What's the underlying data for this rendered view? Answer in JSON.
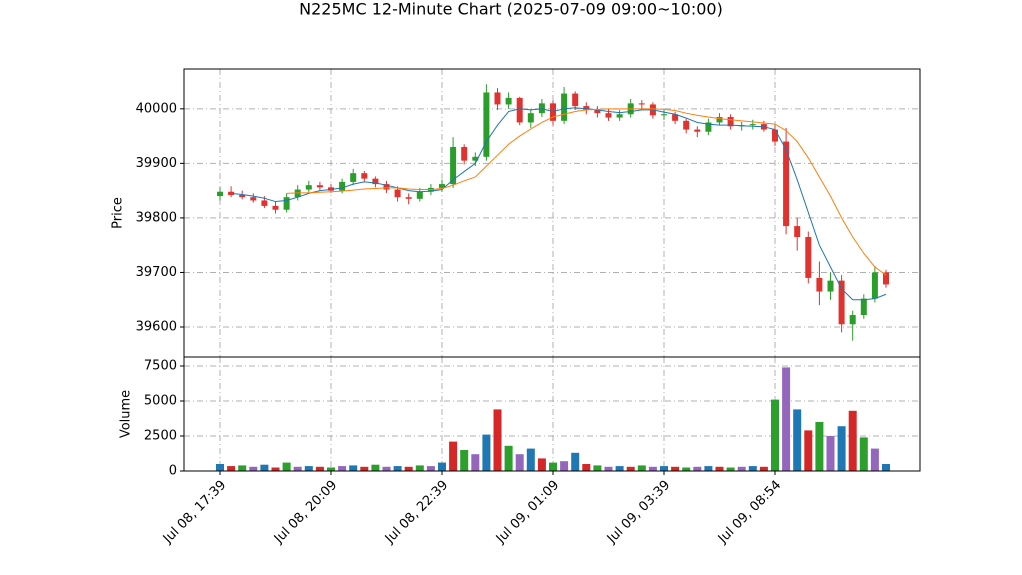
{
  "chart_data": {
    "type": "candlestick",
    "title": "N225MC 12-Minute Chart (2025-07-09 09:00~10:00)",
    "y_label": "Price",
    "categories": [
      "Jul 08, 17:39",
      null,
      null,
      null,
      null,
      null,
      null,
      null,
      null,
      null,
      "Jul 08, 20:09",
      null,
      null,
      null,
      null,
      null,
      null,
      null,
      null,
      null,
      "Jul 08, 22:39",
      null,
      null,
      null,
      null,
      null,
      null,
      null,
      null,
      null,
      "Jul 09, 01:09",
      null,
      null,
      null,
      null,
      null,
      null,
      null,
      null,
      null,
      "Jul 09, 03:39",
      null,
      null,
      null,
      null,
      null,
      null,
      null,
      null,
      null,
      "Jul 09, 08:54",
      null,
      null,
      null,
      null,
      null,
      null,
      null,
      null,
      null,
      null
    ],
    "open": [
      39840,
      39848,
      39842,
      39838,
      39832,
      39822,
      39815,
      39838,
      39852,
      39860,
      39856,
      39850,
      39866,
      39882,
      39872,
      39862,
      39852,
      39838,
      39835,
      39848,
      39855,
      39862,
      39930,
      39905,
      39912,
      40030,
      40008,
      40020,
      39975,
      39992,
      40010,
      39978,
      40028,
      40005,
      39998,
      39992,
      39984,
      39990,
      40010,
      40008,
      39988,
      39990,
      39978,
      39962,
      39958,
      39975,
      39985,
      39968,
      39970,
      39972,
      39962,
      39940,
      39785,
      39765,
      39690,
      39665,
      39685,
      39605,
      39622,
      39652,
      39700
    ],
    "high": [
      39856,
      39858,
      39850,
      39845,
      39840,
      39830,
      39845,
      39860,
      39868,
      39866,
      39862,
      39872,
      39890,
      39886,
      39876,
      39868,
      39858,
      39845,
      39855,
      39862,
      39870,
      39948,
      39935,
      39920,
      40045,
      40038,
      40030,
      40022,
      40000,
      40018,
      40015,
      40040,
      40032,
      40012,
      40005,
      40000,
      39998,
      40018,
      40016,
      40012,
      39998,
      39994,
      39982,
      39968,
      39982,
      39992,
      39990,
      39976,
      39980,
      39978,
      39970,
      39965,
      39800,
      39775,
      39720,
      39700,
      39695,
      39630,
      39660,
      39712,
      39705
    ],
    "low": [
      39832,
      39838,
      39834,
      39828,
      39818,
      39808,
      39810,
      39832,
      39846,
      39850,
      39846,
      39845,
      39860,
      39866,
      39856,
      39846,
      39830,
      39825,
      39830,
      39842,
      39848,
      39855,
      39898,
      39895,
      39905,
      39998,
      40000,
      39970,
      39965,
      39985,
      39970,
      39972,
      39998,
      39990,
      39984,
      39978,
      39978,
      39984,
      40000,
      39982,
      39980,
      39972,
      39955,
      39948,
      39952,
      39970,
      39962,
      39960,
      39962,
      39958,
      39932,
      39770,
      39740,
      39680,
      39640,
      39650,
      39590,
      39575,
      39615,
      39645,
      39672
    ],
    "close": [
      39848,
      39842,
      39838,
      39832,
      39822,
      39815,
      39838,
      39852,
      39860,
      39856,
      39850,
      39866,
      39882,
      39872,
      39862,
      39852,
      39838,
      39835,
      39848,
      39855,
      39862,
      39930,
      39905,
      39912,
      40030,
      40008,
      40020,
      39975,
      39992,
      40010,
      39978,
      40028,
      40005,
      39998,
      39992,
      39984,
      39990,
      40010,
      40008,
      39988,
      39990,
      39978,
      39962,
      39958,
      39975,
      39985,
      39968,
      39970,
      39972,
      39962,
      39940,
      39785,
      39765,
      39690,
      39665,
      39685,
      39605,
      39622,
      39652,
      39700,
      39678
    ],
    "up_color": "#2a9d2a",
    "down_color": "#e0322e",
    "lines": [
      {
        "color": "#1f77b4",
        "values": [
          null,
          39845,
          39843,
          39840,
          39836,
          39830,
          39832,
          39838,
          39845,
          39850,
          39852,
          39855,
          39862,
          39866,
          39864,
          39860,
          39855,
          39850,
          39848,
          39849,
          39852,
          39870,
          39885,
          39900,
          39940,
          39970,
          39995,
          40000,
          39998,
          40000,
          39995,
          40000,
          40002,
          40000,
          39998,
          39995,
          39993,
          39995,
          39998,
          39998,
          39994,
          39990,
          39983,
          39975,
          39972,
          39970,
          39970,
          39969,
          39968,
          39967,
          39962,
          39925,
          39870,
          39810,
          39750,
          39710,
          39670,
          39650,
          39650,
          39652,
          39660
        ]
      },
      {
        "color": "#ff7f0e",
        "values": [
          null,
          null,
          null,
          null,
          null,
          null,
          39845,
          39846,
          39846,
          39847,
          39848,
          39849,
          39851,
          39853,
          39854,
          39855,
          39855,
          39853,
          39852,
          39852,
          39854,
          39860,
          39868,
          39875,
          39895,
          39915,
          39935,
          39950,
          39963,
          39975,
          39985,
          39990,
          39995,
          39998,
          39999,
          40000,
          40000,
          40000,
          40000,
          40000,
          39999,
          39997,
          39992,
          39988,
          39985,
          39982,
          39980,
          39978,
          39976,
          39974,
          39972,
          39960,
          39940,
          39910,
          39875,
          39840,
          39800,
          39765,
          39735,
          39710,
          39695
        ]
      }
    ],
    "ylim": [
      39545,
      40073
    ],
    "yticks": [
      39600,
      39700,
      39800,
      39900,
      40000
    ],
    "grid": true,
    "volume": {
      "y_label": "Volume",
      "values": [
        500,
        350,
        400,
        300,
        450,
        250,
        600,
        300,
        350,
        300,
        250,
        350,
        400,
        300,
        450,
        300,
        350,
        300,
        400,
        350,
        600,
        2100,
        1500,
        1200,
        2600,
        4400,
        1800,
        1200,
        1600,
        900,
        600,
        700,
        1300,
        500,
        400,
        300,
        350,
        300,
        400,
        300,
        350,
        300,
        250,
        300,
        350,
        300,
        250,
        300,
        350,
        300,
        5100,
        7400,
        4400,
        2900,
        3500,
        2500,
        3200,
        4300,
        2400,
        1600,
        500
      ],
      "colors": [
        "#1f77b4",
        "#d62728",
        "#2ca02c",
        "#9467bd"
      ],
      "ylim": [
        0,
        8143
      ],
      "yticks": [
        0,
        2500,
        5000,
        7500
      ]
    }
  }
}
